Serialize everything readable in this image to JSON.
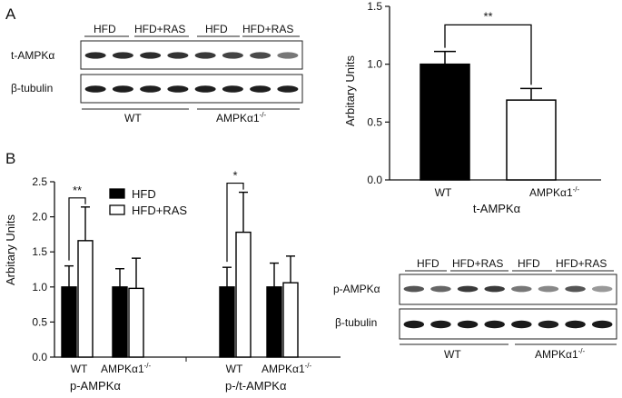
{
  "panels": {
    "A": {
      "letter": "A",
      "blot": {
        "group_labels": [
          "HFD",
          "HFD+RAS",
          "HFD",
          "HFD+RAS"
        ],
        "row_labels": [
          "t-AMPKα",
          "β-tubulin"
        ],
        "genotypes": [
          "WT",
          "AMPKα1"
        ],
        "genotype_superscript": "-/-"
      }
    },
    "B": {
      "letter": "B",
      "blot": {
        "group_labels": [
          "HFD",
          "HFD+RAS",
          "HFD",
          "HFD+RAS"
        ],
        "row_labels": [
          "p-AMPKα",
          "β-tubulin"
        ],
        "genotypes": [
          "WT",
          "AMPKα1"
        ],
        "genotype_superscript": "-/-"
      }
    }
  },
  "chart_data": [
    {
      "id": "chart-A",
      "type": "bar",
      "categories": [
        "WT",
        "AMPKα1"
      ],
      "category_superscripts": [
        "",
        "-/-"
      ],
      "xlabel": "t-AMPKα",
      "ylabel": "Arbitary Units",
      "ylim": [
        0,
        1.5
      ],
      "yticks": [
        "0.0",
        "0.5",
        "1.0",
        "1.5"
      ],
      "values": [
        1.0,
        0.69
      ],
      "errors": [
        0.11,
        0.1
      ],
      "fills": [
        "#000000",
        "#ffffff"
      ],
      "significance": [
        {
          "label": "**",
          "from": 0,
          "to": 1
        }
      ]
    },
    {
      "id": "chart-B",
      "type": "bar",
      "groups": [
        {
          "xlabel": "p-AMPKα",
          "categories": [
            "WT",
            "AMPKα1"
          ],
          "category_superscripts": [
            "",
            "-/-"
          ]
        },
        {
          "xlabel": "p-/t-AMPKα",
          "categories": [
            "WT",
            "AMPKα1"
          ],
          "category_superscripts": [
            "",
            "-/-"
          ]
        }
      ],
      "ylabel": "Arbitary Units",
      "ylim": [
        0,
        2.5
      ],
      "yticks": [
        "0.0",
        "0.5",
        "1.0",
        "1.5",
        "2.0",
        "2.5"
      ],
      "series": [
        {
          "name": "HFD",
          "fill": "#000000",
          "values": [
            1.0,
            1.0,
            1.0,
            1.0
          ],
          "errors": [
            0.3,
            0.26,
            0.28,
            0.34
          ]
        },
        {
          "name": "HFD+RAS",
          "fill": "#ffffff",
          "values": [
            1.66,
            0.98,
            1.78,
            1.06
          ],
          "errors": [
            0.48,
            0.43,
            0.57,
            0.38
          ]
        }
      ],
      "legend": "top-left",
      "significance": [
        {
          "label": "**",
          "category": 0
        },
        {
          "label": "*",
          "category": 2
        }
      ]
    }
  ]
}
